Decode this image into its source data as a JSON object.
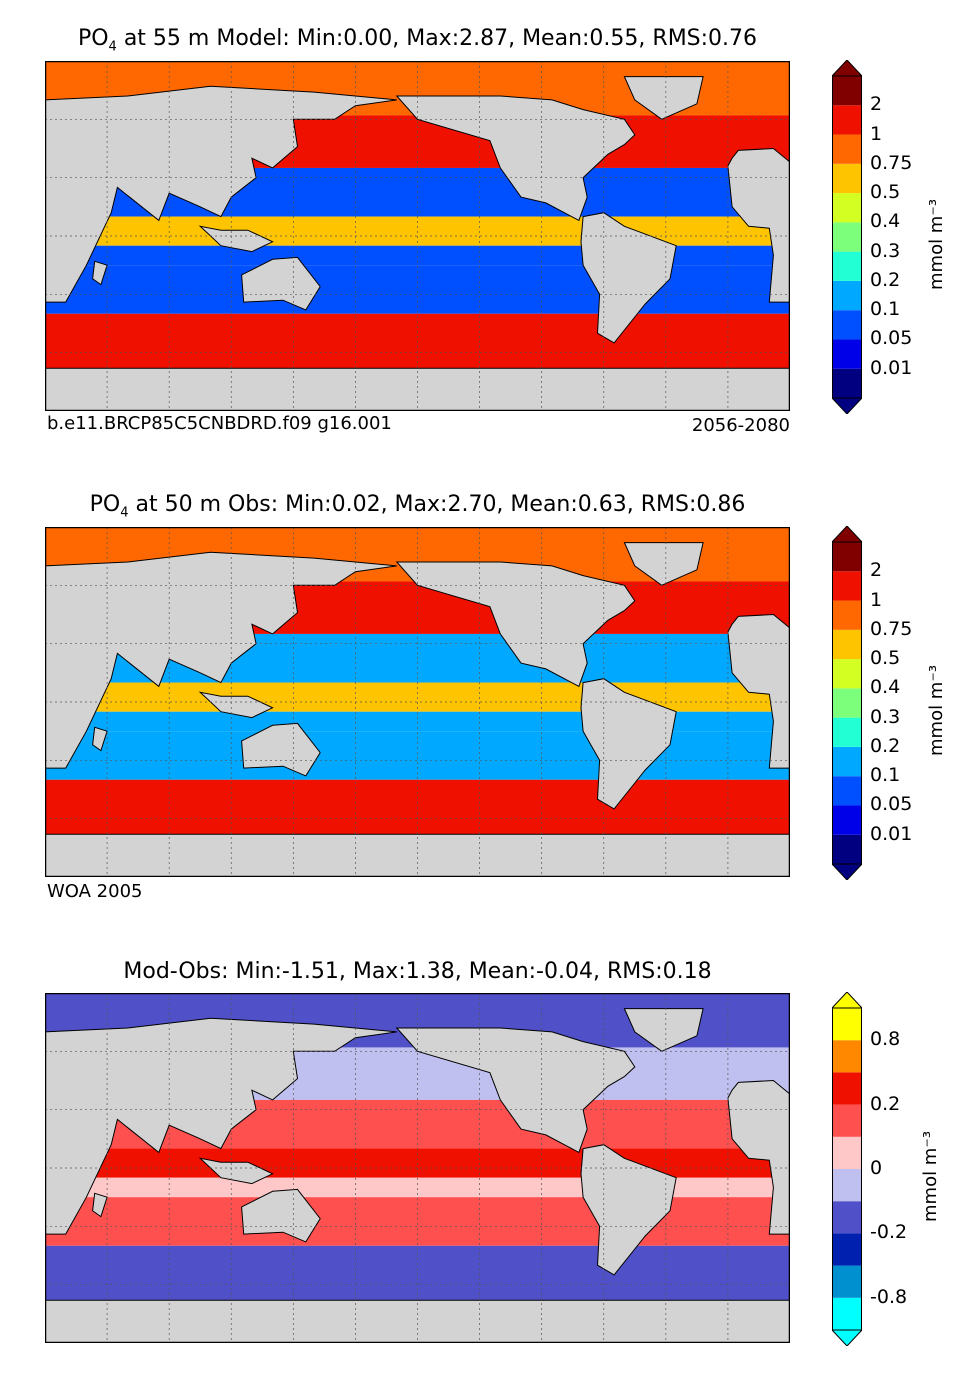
{
  "chart_data": [
    {
      "type": "heatmap",
      "title_species": "PO",
      "title_subscript": "4",
      "title_rest": "  at 55 m Model: Min:0.00, Max:2.87, Mean:0.55, RMS:0.76",
      "caption_left": "b.e11.BRCP85C5CNBDRD.f09 g16.001",
      "caption_right": "2056-2080",
      "colorbar_label": "mmol m⁻³",
      "colorbar_ticks": [
        "2",
        "1",
        "0.75",
        "0.5",
        "0.4",
        "0.3",
        "0.2",
        "0.1",
        "0.05",
        "0.01"
      ],
      "colorbar_levels": [
        0.01,
        0.05,
        0.1,
        0.2,
        0.3,
        0.4,
        0.5,
        0.75,
        1,
        2
      ],
      "colorbar_colors": [
        "#000080",
        "#0000e8",
        "#0050ff",
        "#00a8ff",
        "#22ffd4",
        "#7cff7a",
        "#d4ff22",
        "#ffc400",
        "#ff6800",
        "#f01000",
        "#800000"
      ],
      "extend": "both",
      "regions": {
        "southern_ocean": 1.2,
        "north_pacific": 1.0,
        "arctic": 0.8,
        "subtropical_gyres": 0.05,
        "equatorial_pacific": 0.5,
        "tropical_atlantic": 0.08
      }
    },
    {
      "type": "heatmap",
      "title_species": "PO",
      "title_subscript": "4",
      "title_rest": "  at 50 m Obs: Min:0.02, Max:2.70, Mean:0.63, RMS:0.86",
      "caption_left": "WOA 2005",
      "caption_right": "",
      "colorbar_label": "mmol m⁻³",
      "colorbar_ticks": [
        "2",
        "1",
        "0.75",
        "0.5",
        "0.4",
        "0.3",
        "0.2",
        "0.1",
        "0.05",
        "0.01"
      ],
      "colorbar_levels": [
        0.01,
        0.05,
        0.1,
        0.2,
        0.3,
        0.4,
        0.5,
        0.75,
        1,
        2
      ],
      "colorbar_colors": [
        "#000080",
        "#0000e8",
        "#0050ff",
        "#00a8ff",
        "#22ffd4",
        "#7cff7a",
        "#d4ff22",
        "#ffc400",
        "#ff6800",
        "#f01000",
        "#800000"
      ],
      "extend": "both",
      "regions": {
        "southern_ocean": 1.5,
        "north_pacific": 1.2,
        "arctic": 0.8,
        "subtropical_gyres": 0.1,
        "equatorial_pacific": 0.6,
        "tropical_atlantic": 0.1
      }
    },
    {
      "type": "heatmap",
      "title_species": "",
      "title_subscript": "",
      "title_rest": "Mod-Obs: Min:-1.51, Max:1.38, Mean:-0.04, RMS:0.18",
      "caption_left": "",
      "caption_right": "",
      "colorbar_label": "mmol m⁻³",
      "colorbar_ticks": [
        "0.8",
        "0.2",
        "0",
        "-0.2",
        "-0.8"
      ],
      "colorbar_levels": [
        -1.0,
        -0.8,
        -0.4,
        -0.2,
        -0.1,
        0,
        0.1,
        0.2,
        0.4,
        0.8,
        1.0
      ],
      "colorbar_colors": [
        "#00ffff",
        "#0090d0",
        "#0020b0",
        "#5050c8",
        "#c0c0f0",
        "#ffc8c8",
        "#ff5050",
        "#f01000",
        "#ff8800",
        "#ffff00"
      ],
      "extend": "both",
      "regions": {
        "southern_ocean": -0.3,
        "north_pacific": -0.2,
        "arctic": -0.3,
        "subtropical_gyres": 0.05,
        "equatorial_pacific": 0.1,
        "tropical_atlantic": -0.05
      }
    }
  ],
  "map_colors": {
    "land": "#d3d3d3",
    "coast": "#000000",
    "grid": "#555555"
  }
}
